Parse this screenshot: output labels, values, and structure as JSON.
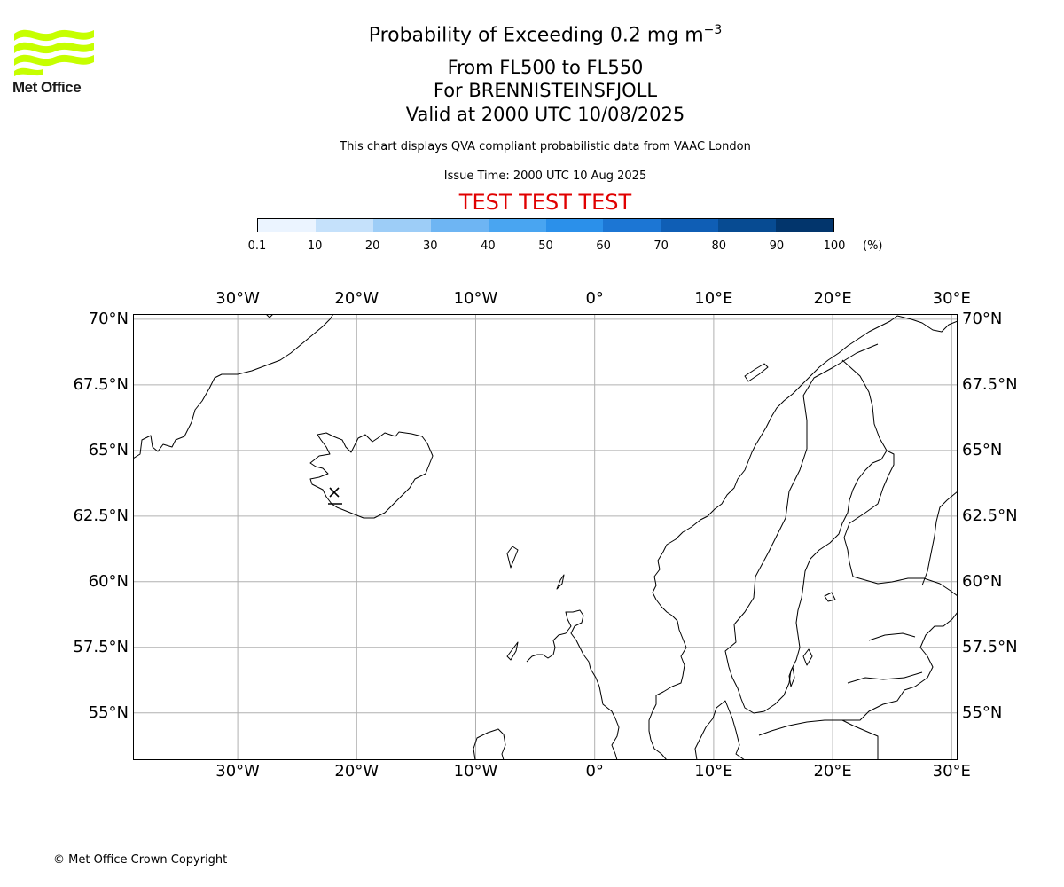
{
  "logo": {
    "text": "Met Office"
  },
  "title": {
    "main": "Probability of Exceeding 0.2 mg m",
    "main_exp": "−3",
    "levels": "From FL500 to FL550",
    "volcano": "For BRENNISTEINSFJOLL",
    "valid": "Valid at 2000 UTC 10/08/2025",
    "subtitle": "This chart displays QVA compliant probabilistic data from VAAC London",
    "issue": "Issue Time: 2000 UTC 10 Aug 2025",
    "test": "TEST TEST TEST"
  },
  "colors": {
    "test": "#e00000",
    "grid": "#b0b0b0",
    "coast": "#000000"
  },
  "colorbar": {
    "ticks": [
      "0.1",
      "10",
      "20",
      "30",
      "40",
      "50",
      "60",
      "70",
      "80",
      "90",
      "100"
    ],
    "unit": "(%)",
    "colors": [
      "#ebf4ff",
      "#c5e1fb",
      "#9dcdf7",
      "#6eb5f3",
      "#49a5f1",
      "#2b90ea",
      "#1c76d4",
      "#0f5eb5",
      "#074b92",
      "#02356c"
    ]
  },
  "map": {
    "lon_range": [
      -38.8,
      30.5
    ],
    "lat_range": [
      53.2,
      70.2
    ],
    "lon_ticks": [
      {
        "value": -30,
        "label": "30°W"
      },
      {
        "value": -20,
        "label": "20°W"
      },
      {
        "value": -10,
        "label": "10°W"
      },
      {
        "value": 0,
        "label": "0°"
      },
      {
        "value": 10,
        "label": "10°E"
      },
      {
        "value": 20,
        "label": "20°E"
      },
      {
        "value": 30,
        "label": "30°E"
      }
    ],
    "lat_ticks": [
      {
        "value": 70,
        "label": "70°N"
      },
      {
        "value": 67.5,
        "label": "67.5°N"
      },
      {
        "value": 65,
        "label": "65°N"
      },
      {
        "value": 62.5,
        "label": "62.5°N"
      },
      {
        "value": 60,
        "label": "60°N"
      },
      {
        "value": 57.5,
        "label": "57.5°N"
      },
      {
        "value": 55,
        "label": "55°N"
      }
    ]
  },
  "footer": "© Met Office Crown Copyright"
}
